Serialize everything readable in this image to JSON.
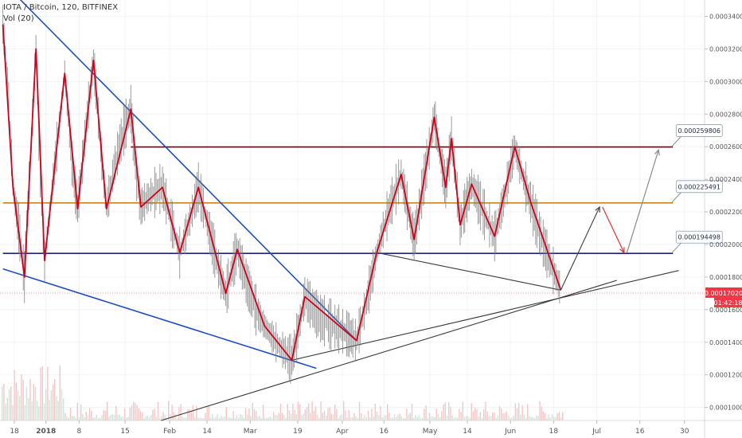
{
  "legend": {
    "symbol": "IOTA / Bitcoin, 120, BITFINEX",
    "volume": "Vol (20)"
  },
  "price_tag": "0.00017020",
  "countdown": "01:42:18",
  "colors": {
    "candle": "#7a7a7a",
    "zigzag": "#d0021b",
    "blue_trend": "#1f4fbf",
    "black_line": "#3a3a3a",
    "resistance_top": "#5a0a14",
    "orange_level": "#c8861e",
    "navy_level": "#1a237e",
    "price_tag": "#f23645",
    "volume": "#f2c7c7"
  },
  "chart_data": {
    "type": "line",
    "title": "",
    "xlabel": "",
    "ylabel": "",
    "ylim": [
      9.2e-05,
      0.00035
    ],
    "y_ticks": [
      "0.000100000",
      "0.000120000",
      "0.000140000",
      "0.000160000",
      "0.000180000",
      "0.000200000",
      "0.000220000",
      "0.000240000",
      "0.000260000",
      "0.000280000",
      "0.000300000",
      "0.000320000",
      "0.000340000"
    ],
    "x_ticks": [
      {
        "label": "18",
        "t": 0.8
      },
      {
        "label": "2018",
        "t": 3.0
      },
      {
        "label": "8",
        "t": 5.3
      },
      {
        "label": "15",
        "t": 8.5
      },
      {
        "label": "Feb",
        "t": 11.6
      },
      {
        "label": "14",
        "t": 14.2
      },
      {
        "label": "Mar",
        "t": 17.2
      },
      {
        "label": "19",
        "t": 20.5
      },
      {
        "label": "Apr",
        "t": 23.6
      },
      {
        "label": "16",
        "t": 26.5
      },
      {
        "label": "May",
        "t": 29.7
      },
      {
        "label": "14",
        "t": 32.3
      },
      {
        "label": "Jun",
        "t": 35.3
      },
      {
        "label": "18",
        "t": 38.3
      },
      {
        "label": "Jul",
        "t": 41.3
      },
      {
        "label": "16",
        "t": 44.3
      },
      {
        "label": "30",
        "t": 47.4
      }
    ],
    "zigzag": [
      [
        0.0,
        0.000335
      ],
      [
        0.7,
        0.000235
      ],
      [
        1.5,
        0.00018
      ],
      [
        2.3,
        0.00032
      ],
      [
        2.9,
        0.00019
      ],
      [
        4.3,
        0.000305
      ],
      [
        5.2,
        0.000222
      ],
      [
        6.3,
        0.000313
      ],
      [
        7.2,
        0.000222
      ],
      [
        8.9,
        0.000283
      ],
      [
        9.6,
        0.000223
      ],
      [
        11.1,
        0.000235
      ],
      [
        12.3,
        0.000195
      ],
      [
        13.6,
        0.000235
      ],
      [
        15.5,
        0.00017
      ],
      [
        16.3,
        0.000197
      ],
      [
        18.2,
        0.00015
      ],
      [
        20.1,
        0.000129
      ],
      [
        21.0,
        0.000168
      ],
      [
        24.6,
        0.000141
      ],
      [
        26.0,
        0.000195
      ],
      [
        27.7,
        0.000243
      ],
      [
        28.6,
        0.000203
      ],
      [
        30.0,
        0.000278
      ],
      [
        30.8,
        0.000235
      ],
      [
        31.2,
        0.000265
      ],
      [
        31.8,
        0.000212
      ],
      [
        32.6,
        0.000237
      ],
      [
        34.2,
        0.000205
      ],
      [
        35.6,
        0.00026
      ],
      [
        36.7,
        0.000226
      ],
      [
        38.8,
        0.000172
      ]
    ],
    "price": [
      [
        0.0,
        0.000335
      ],
      [
        0.4,
        0.00029
      ],
      [
        0.7,
        0.000235
      ],
      [
        1.1,
        0.00021
      ],
      [
        1.5,
        0.00018
      ],
      [
        1.9,
        0.00025
      ],
      [
        2.3,
        0.00032
      ],
      [
        2.6,
        0.00024
      ],
      [
        2.9,
        0.00019
      ],
      [
        3.5,
        0.00024
      ],
      [
        4.0,
        0.00028
      ],
      [
        4.3,
        0.000305
      ],
      [
        4.8,
        0.00025
      ],
      [
        5.2,
        0.000222
      ],
      [
        5.7,
        0.000265
      ],
      [
        6.3,
        0.000313
      ],
      [
        6.8,
        0.00026
      ],
      [
        7.2,
        0.000222
      ],
      [
        7.8,
        0.00025
      ],
      [
        8.4,
        0.00027
      ],
      [
        8.9,
        0.000283
      ],
      [
        9.3,
        0.00024
      ],
      [
        9.6,
        0.000223
      ],
      [
        10.2,
        0.00023
      ],
      [
        11.1,
        0.000235
      ],
      [
        11.7,
        0.000215
      ],
      [
        12.3,
        0.000195
      ],
      [
        13.0,
        0.000215
      ],
      [
        13.6,
        0.000235
      ],
      [
        14.3,
        0.00021
      ],
      [
        15.0,
        0.000185
      ],
      [
        15.5,
        0.00017
      ],
      [
        16.3,
        0.000197
      ],
      [
        17.0,
        0.000175
      ],
      [
        17.6,
        0.00016
      ],
      [
        18.2,
        0.00015
      ],
      [
        19.0,
        0.00014
      ],
      [
        20.1,
        0.000129
      ],
      [
        20.6,
        0.00015
      ],
      [
        21.0,
        0.000168
      ],
      [
        22.0,
        0.000155
      ],
      [
        23.0,
        0.00015
      ],
      [
        24.0,
        0.000145
      ],
      [
        24.6,
        0.000141
      ],
      [
        25.3,
        0.000165
      ],
      [
        26.0,
        0.000195
      ],
      [
        26.8,
        0.00022
      ],
      [
        27.7,
        0.000243
      ],
      [
        28.2,
        0.00022
      ],
      [
        28.6,
        0.000203
      ],
      [
        29.3,
        0.00024
      ],
      [
        30.0,
        0.000278
      ],
      [
        30.4,
        0.000255
      ],
      [
        30.8,
        0.000235
      ],
      [
        31.2,
        0.000265
      ],
      [
        31.5,
        0.00024
      ],
      [
        31.8,
        0.000212
      ],
      [
        32.2,
        0.000225
      ],
      [
        32.6,
        0.000237
      ],
      [
        33.4,
        0.00022
      ],
      [
        34.2,
        0.000205
      ],
      [
        34.9,
        0.00023
      ],
      [
        35.6,
        0.00026
      ],
      [
        36.2,
        0.00024
      ],
      [
        36.7,
        0.000226
      ],
      [
        37.4,
        0.000205
      ],
      [
        38.1,
        0.000188
      ],
      [
        38.8,
        0.000172
      ]
    ],
    "levels": [
      {
        "label": "0.000259806",
        "value": 0.000259806,
        "t_start": 8.9,
        "t_end": 46.6,
        "color": "#5a0a14"
      },
      {
        "label": "0.000225491",
        "value": 0.000225491,
        "t_start": 0.0,
        "t_end": 46.6,
        "color": "#c8861e"
      },
      {
        "label": "0.000194498",
        "value": 0.000194498,
        "t_start": 0.0,
        "t_end": 46.6,
        "color": "#1a237e"
      }
    ],
    "current_price": 0.0001702,
    "trendlines": [
      {
        "color": "#1f4fbf",
        "points": [
          [
            0.9,
            0.000353
          ],
          [
            24.6,
            0.000141
          ]
        ]
      },
      {
        "color": "#1f4fbf",
        "points": [
          [
            0.0,
            0.000185
          ],
          [
            21.8,
            0.000124
          ]
        ]
      },
      {
        "color": "#3a3a3a",
        "points": [
          [
            20.1,
            0.000129
          ],
          [
            47.0,
            0.000184
          ]
        ]
      },
      {
        "color": "#3a3a3a",
        "points": [
          [
            11.0,
            9.2e-05
          ],
          [
            42.7,
            0.000178
          ]
        ]
      },
      {
        "color": "#3a3a3a",
        "points": [
          [
            26.0,
            0.000195
          ],
          [
            38.8,
            0.000172
          ]
        ]
      }
    ],
    "projection": [
      {
        "color": "#4a4a4a",
        "from": [
          38.8,
          0.000172
        ],
        "to": [
          41.5,
          0.000223
        ]
      },
      {
        "color": "#e03030",
        "from": [
          41.7,
          0.000223
        ],
        "to": [
          43.2,
          0.000195
        ]
      },
      {
        "color": "#8a8a8a",
        "from": [
          43.4,
          0.000195
        ],
        "to": [
          45.6,
          0.000258
        ]
      }
    ]
  }
}
